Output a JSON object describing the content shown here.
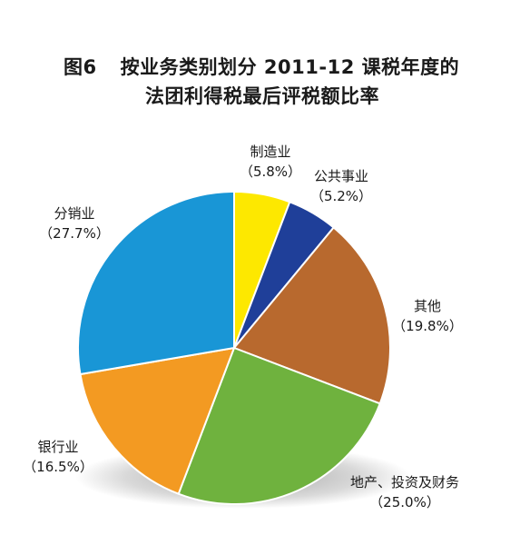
{
  "title": {
    "figure_no": "图6",
    "line1": "按业务类别划分 2011-12 课税年度的",
    "line2": "法团利得税最后评税额比率"
  },
  "chart_data": {
    "type": "pie",
    "title": "图6 按业务类别划分 2011-12 课税年度的法团利得税最后评税额比率",
    "slices": [
      {
        "label": "制造业",
        "value": 5.8,
        "value_label": "（5.8%）",
        "color": "#fde800"
      },
      {
        "label": "公共事业",
        "value": 5.2,
        "value_label": "（5.2%）",
        "color": "#1f3f99"
      },
      {
        "label": "其他",
        "value": 19.8,
        "value_label": "（19.8%）",
        "color": "#b8692e"
      },
      {
        "label": "地产、投资及财务",
        "value": 25.0,
        "value_label": "（25.0%）",
        "color": "#6fb23e"
      },
      {
        "label": "银行业",
        "value": 16.5,
        "value_label": "（16.5%）",
        "color": "#f39a22"
      },
      {
        "label": "分销业",
        "value": 27.7,
        "value_label": "（27.7%）",
        "color": "#1996d6"
      }
    ],
    "start_angle_deg": 0,
    "direction": "clockwise"
  }
}
